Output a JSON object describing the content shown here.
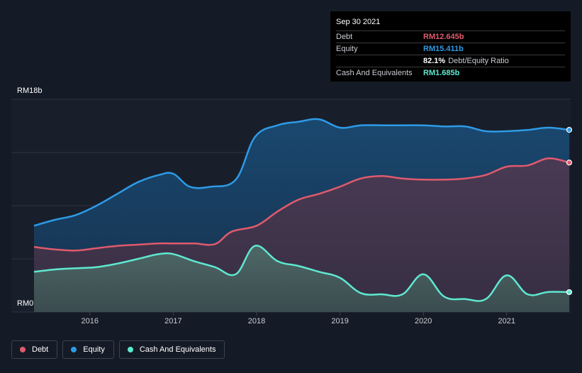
{
  "tooltip": {
    "date": "Sep 30 2021",
    "rows": [
      {
        "label": "Debt",
        "value": "RM12.645b",
        "color": "#e05a6d"
      },
      {
        "label": "Equity",
        "value": "RM15.411b",
        "color": "#2e9be6"
      },
      {
        "label": "",
        "value": "82.1%",
        "desc": "Debt/Equity Ratio",
        "color": "#ffffff"
      },
      {
        "label": "Cash And Equivalents",
        "value": "RM1.685b",
        "color": "#5ee8d0"
      }
    ]
  },
  "legend": [
    {
      "label": "Debt",
      "color": "#e05a6d"
    },
    {
      "label": "Equity",
      "color": "#2e9be6"
    },
    {
      "label": "Cash And Equivalents",
      "color": "#5ee8d0"
    }
  ],
  "chart_data": {
    "type": "area",
    "y_top_label": "RM18b",
    "y_bottom_label": "RM0",
    "ylim": [
      0,
      18
    ],
    "xlim": [
      2015.33,
      2021.75
    ],
    "x_ticks": [
      2016,
      2017,
      2018,
      2019,
      2020,
      2021
    ],
    "x_tick_labels": [
      "2016",
      "2017",
      "2018",
      "2019",
      "2020",
      "2021"
    ],
    "series": [
      {
        "name": "Equity",
        "color": "#2e9be6",
        "points": [
          [
            2015.33,
            7.3
          ],
          [
            2015.58,
            7.8
          ],
          [
            2015.83,
            8.2
          ],
          [
            2016.08,
            9.0
          ],
          [
            2016.33,
            10.0
          ],
          [
            2016.58,
            11.0
          ],
          [
            2016.83,
            11.6
          ],
          [
            2017.0,
            11.7
          ],
          [
            2017.2,
            10.6
          ],
          [
            2017.45,
            10.6
          ],
          [
            2017.75,
            11.2
          ],
          [
            2017.98,
            14.8
          ],
          [
            2018.25,
            15.8
          ],
          [
            2018.5,
            16.1
          ],
          [
            2018.75,
            16.3
          ],
          [
            2019.0,
            15.6
          ],
          [
            2019.25,
            15.8
          ],
          [
            2019.5,
            15.8
          ],
          [
            2019.75,
            15.8
          ],
          [
            2020.0,
            15.8
          ],
          [
            2020.25,
            15.7
          ],
          [
            2020.5,
            15.7
          ],
          [
            2020.75,
            15.3
          ],
          [
            2021.0,
            15.3
          ],
          [
            2021.25,
            15.4
          ],
          [
            2021.5,
            15.6
          ],
          [
            2021.75,
            15.411
          ]
        ]
      },
      {
        "name": "Debt",
        "color": "#e05a6d",
        "points": [
          [
            2015.33,
            5.5
          ],
          [
            2015.58,
            5.3
          ],
          [
            2015.83,
            5.2
          ],
          [
            2016.08,
            5.4
          ],
          [
            2016.33,
            5.6
          ],
          [
            2016.58,
            5.7
          ],
          [
            2016.83,
            5.8
          ],
          [
            2017.0,
            5.8
          ],
          [
            2017.25,
            5.8
          ],
          [
            2017.5,
            5.75
          ],
          [
            2017.7,
            6.8
          ],
          [
            2018.0,
            7.3
          ],
          [
            2018.25,
            8.5
          ],
          [
            2018.5,
            9.5
          ],
          [
            2018.75,
            10.0
          ],
          [
            2019.0,
            10.6
          ],
          [
            2019.25,
            11.3
          ],
          [
            2019.5,
            11.5
          ],
          [
            2019.75,
            11.3
          ],
          [
            2020.0,
            11.2
          ],
          [
            2020.25,
            11.2
          ],
          [
            2020.5,
            11.3
          ],
          [
            2020.75,
            11.6
          ],
          [
            2021.0,
            12.3
          ],
          [
            2021.25,
            12.4
          ],
          [
            2021.5,
            13.0
          ],
          [
            2021.75,
            12.645
          ]
        ]
      },
      {
        "name": "Cash And Equivalents",
        "color": "#5ee8d0",
        "points": [
          [
            2015.33,
            3.4
          ],
          [
            2015.58,
            3.6
          ],
          [
            2015.83,
            3.7
          ],
          [
            2016.08,
            3.8
          ],
          [
            2016.33,
            4.1
          ],
          [
            2016.58,
            4.5
          ],
          [
            2016.83,
            4.9
          ],
          [
            2017.0,
            4.9
          ],
          [
            2017.25,
            4.3
          ],
          [
            2017.5,
            3.8
          ],
          [
            2017.75,
            3.2
          ],
          [
            2017.98,
            5.6
          ],
          [
            2018.25,
            4.3
          ],
          [
            2018.5,
            3.9
          ],
          [
            2018.75,
            3.4
          ],
          [
            2019.0,
            2.9
          ],
          [
            2019.25,
            1.6
          ],
          [
            2019.5,
            1.5
          ],
          [
            2019.75,
            1.5
          ],
          [
            2020.0,
            3.2
          ],
          [
            2020.25,
            1.3
          ],
          [
            2020.5,
            1.1
          ],
          [
            2020.75,
            1.1
          ],
          [
            2021.0,
            3.1
          ],
          [
            2021.25,
            1.5
          ],
          [
            2021.5,
            1.7
          ],
          [
            2021.75,
            1.685
          ]
        ]
      }
    ]
  }
}
